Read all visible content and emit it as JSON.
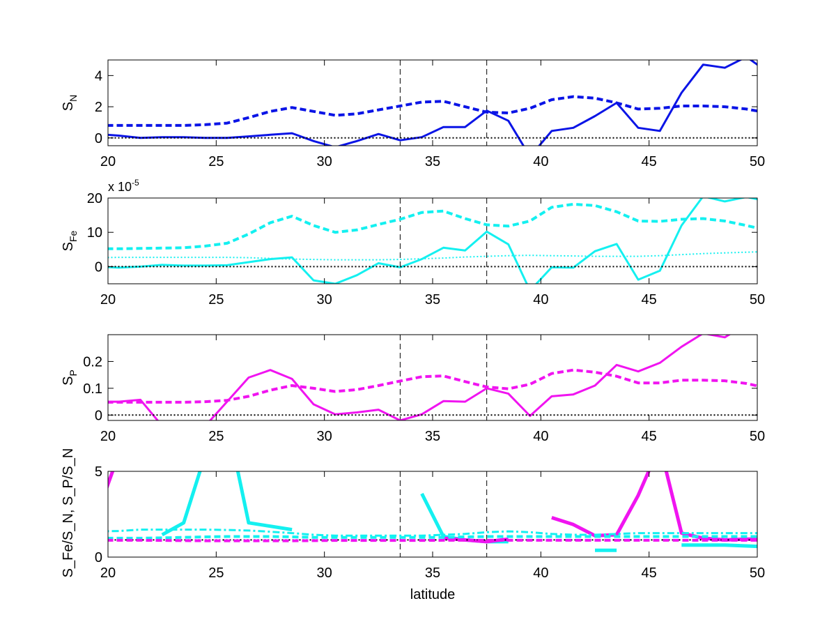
{
  "chart_data": [
    {
      "type": "line",
      "ylabel": {
        "base": "S",
        "sub": "N"
      },
      "xlim": [
        20,
        50
      ],
      "ylim": [
        -0.5,
        5
      ],
      "xticks": [
        20,
        25,
        30,
        35,
        40,
        45,
        50
      ],
      "yticks": [
        0,
        2,
        4
      ],
      "exponent": null,
      "vlines": [
        33.5,
        37.5
      ],
      "x": [
        19.5,
        20.5,
        21.5,
        22.5,
        23.5,
        24.5,
        25.5,
        26.5,
        27.5,
        28.5,
        29.5,
        30.5,
        31.5,
        32.5,
        33.5,
        34.5,
        35.5,
        36.5,
        37.5,
        38.5,
        39.5,
        40.5,
        41.5,
        42.5,
        43.5,
        44.5,
        45.5,
        46.5,
        47.5,
        48.5,
        49.5,
        50.5
      ],
      "series": [
        {
          "name": "S_N",
          "style": "solid",
          "color": "#0a14e6",
          "values": [
            0.25,
            0.15,
            0,
            0.05,
            0.05,
            0,
            0,
            0.1,
            0.2,
            0.3,
            -0.2,
            -0.6,
            -0.2,
            0.25,
            -0.15,
            0.05,
            0.7,
            0.7,
            1.75,
            1.1,
            -1.2,
            0.45,
            0.65,
            1.4,
            2.25,
            0.65,
            0.45,
            2.9,
            4.7,
            4.5,
            5.2,
            4.2
          ]
        },
        {
          "name": "S_N dashed",
          "style": "dashed",
          "color": "#0a14e6",
          "values": [
            0.8,
            0.8,
            0.8,
            0.8,
            0.8,
            0.85,
            0.95,
            1.3,
            1.7,
            1.95,
            1.7,
            1.45,
            1.55,
            1.8,
            2.05,
            2.3,
            2.35,
            2.0,
            1.65,
            1.6,
            1.9,
            2.45,
            2.65,
            2.55,
            2.25,
            1.85,
            1.9,
            2.05,
            2.05,
            2.0,
            1.85,
            1.6
          ]
        },
        {
          "name": "zero",
          "style": "dotted",
          "color": "#000000",
          "values": [
            0,
            0,
            0,
            0,
            0,
            0,
            0,
            0,
            0,
            0,
            0,
            0,
            0,
            0,
            0,
            0,
            0,
            0,
            0,
            0,
            0,
            0,
            0,
            0,
            0,
            0,
            0,
            0,
            0,
            0,
            0,
            0
          ]
        }
      ]
    },
    {
      "type": "line",
      "ylabel": {
        "base": "S",
        "sub": "Fe"
      },
      "xlim": [
        20,
        50
      ],
      "ylim": [
        -5,
        20
      ],
      "xticks": [
        20,
        25,
        30,
        35,
        40,
        45,
        50
      ],
      "yticks": [
        0,
        10,
        20
      ],
      "exponent": {
        "base": "x 10",
        "power": "-5"
      },
      "vlines": [
        33.5,
        37.5
      ],
      "x": [
        19.5,
        20.5,
        21.5,
        22.5,
        23.5,
        24.5,
        25.5,
        26.5,
        27.5,
        28.5,
        29.5,
        30.5,
        31.5,
        32.5,
        33.5,
        34.5,
        35.5,
        36.5,
        37.5,
        38.5,
        39.5,
        40.5,
        41.5,
        42.5,
        43.5,
        44.5,
        45.5,
        46.5,
        47.5,
        48.5,
        49.5,
        50.5
      ],
      "series": [
        {
          "name": "S_Fe",
          "style": "solid",
          "color": "#14f0f0",
          "values": [
            0,
            -0.3,
            0,
            0.5,
            0.3,
            0.3,
            0.4,
            1.3,
            2.2,
            2.7,
            -4,
            -5,
            -2.5,
            1,
            -0.2,
            2.2,
            5.5,
            4.7,
            10.2,
            6.5,
            -7,
            -0.2,
            -0.3,
            4.5,
            6.6,
            -3.8,
            -1.2,
            12,
            20.5,
            19,
            20.3,
            19
          ]
        },
        {
          "name": "S_Fe dashed",
          "style": "dashed",
          "color": "#14f0f0",
          "values": [
            5.2,
            5.2,
            5.3,
            5.4,
            5.5,
            6,
            6.8,
            9.5,
            12.8,
            14.7,
            12,
            10,
            10.7,
            12.3,
            13.8,
            15.8,
            16.2,
            14,
            12.2,
            11.8,
            13.3,
            17.3,
            18.2,
            17.8,
            16,
            13.3,
            13.2,
            13.8,
            14,
            13.3,
            12,
            10.5
          ]
        },
        {
          "name": "S_Fe dotted",
          "style": "dotted",
          "color": "#14f0f0",
          "values": [
            2.6,
            2.7,
            2.7,
            2.7,
            2.7,
            2.7,
            2.7,
            2.6,
            2.4,
            2.2,
            2.1,
            2.0,
            2.0,
            2.0,
            2.1,
            2.3,
            2.5,
            2.8,
            3.0,
            3.2,
            3.3,
            3.2,
            3.1,
            3.0,
            3.0,
            3.0,
            3.2,
            3.5,
            3.8,
            4.0,
            4.2,
            4.4
          ]
        },
        {
          "name": "zero",
          "style": "dotted",
          "color": "#000000",
          "values": [
            0,
            0,
            0,
            0,
            0,
            0,
            0,
            0,
            0,
            0,
            0,
            0,
            0,
            0,
            0,
            0,
            0,
            0,
            0,
            0,
            0,
            0,
            0,
            0,
            0,
            0,
            0,
            0,
            0,
            0,
            0,
            0
          ]
        }
      ]
    },
    {
      "type": "line",
      "ylabel": {
        "base": "S",
        "sub": "P"
      },
      "xlim": [
        20,
        50
      ],
      "ylim": [
        -0.02,
        0.3
      ],
      "xticks": [
        20,
        25,
        30,
        35,
        40,
        45,
        50
      ],
      "yticks": [
        0,
        0.1,
        0.2
      ],
      "exponent": null,
      "vlines": [
        33.5,
        37.5
      ],
      "x": [
        19.5,
        20.5,
        21.5,
        22.5,
        23.5,
        24.5,
        25.5,
        26.5,
        27.5,
        28.5,
        29.5,
        30.5,
        31.5,
        32.5,
        33.5,
        34.5,
        35.5,
        36.5,
        37.5,
        38.5,
        39.5,
        40.5,
        41.5,
        42.5,
        43.5,
        44.5,
        45.5,
        46.5,
        47.5,
        48.5,
        49.5,
        50.5
      ],
      "series": [
        {
          "name": "S_P",
          "style": "solid",
          "color": "#f014f0",
          "values": [
            0.05,
            0.05,
            0.057,
            -0.04,
            -0.1,
            -0.04,
            0.05,
            0.14,
            0.168,
            0.135,
            0.04,
            0.003,
            0.01,
            0.02,
            -0.02,
            0.003,
            0.052,
            0.05,
            0.1,
            0.08,
            -0.003,
            0.07,
            0.077,
            0.11,
            0.187,
            0.163,
            0.195,
            0.255,
            0.305,
            0.29,
            0.34,
            0.35
          ]
        },
        {
          "name": "S_P dashed",
          "style": "dashed",
          "color": "#f014f0",
          "values": [
            0.048,
            0.048,
            0.048,
            0.048,
            0.048,
            0.05,
            0.055,
            0.07,
            0.093,
            0.11,
            0.1,
            0.088,
            0.095,
            0.11,
            0.127,
            0.143,
            0.146,
            0.125,
            0.105,
            0.098,
            0.115,
            0.155,
            0.168,
            0.16,
            0.145,
            0.12,
            0.12,
            0.13,
            0.13,
            0.128,
            0.118,
            0.1
          ]
        },
        {
          "name": "zero",
          "style": "dotted",
          "color": "#000000",
          "values": [
            0,
            0,
            0,
            0,
            0,
            0,
            0,
            0,
            0,
            0,
            0,
            0,
            0,
            0,
            0,
            0,
            0,
            0,
            0,
            0,
            0,
            0,
            0,
            0,
            0,
            0,
            0,
            0,
            0,
            0,
            0,
            0
          ]
        }
      ]
    },
    {
      "type": "line",
      "ylabel": {
        "text": "S_Fe/S_N, S_P/S_N"
      },
      "xlabel": "latitude",
      "xlim": [
        20,
        50
      ],
      "ylim": [
        0,
        5
      ],
      "xticks": [
        20,
        25,
        30,
        35,
        40,
        45,
        50
      ],
      "yticks": [
        0,
        5
      ],
      "exponent": null,
      "vlines": [
        33.5,
        37.5
      ],
      "x": [
        19.5,
        20.5,
        21.5,
        22.5,
        23.5,
        24.5,
        25.5,
        26.5,
        27.5,
        28.5,
        29.5,
        30.5,
        31.5,
        32.5,
        33.5,
        34.5,
        35.5,
        36.5,
        37.5,
        38.5,
        39.5,
        40.5,
        41.5,
        42.5,
        43.5,
        44.5,
        45.5,
        46.5,
        47.5,
        48.5,
        49.5,
        50.5
      ],
      "series": [
        {
          "name": "S_Fe/S_N",
          "style": "thick",
          "color": "#14f0f0",
          "values": [
            null,
            null,
            null,
            1.3,
            2.0,
            6,
            8,
            2.0,
            1.8,
            1.6,
            null,
            null,
            null,
            null,
            null,
            3.7,
            1.2,
            1.0,
            0.9,
            0.9,
            null,
            null,
            null,
            0.4,
            0.4,
            null,
            null,
            0.7,
            0.7,
            0.7,
            0.65,
            0.6
          ]
        },
        {
          "name": "S_P/S_N",
          "style": "thick",
          "color": "#f014f0",
          "values": [
            2.5,
            6,
            null,
            null,
            null,
            null,
            null,
            null,
            null,
            null,
            null,
            null,
            null,
            null,
            null,
            null,
            1.1,
            1.0,
            0.9,
            1.05,
            null,
            2.3,
            1.9,
            1.25,
            1.3,
            3.6,
            6.5,
            1.4,
            1.1,
            1.0,
            1.05,
            1.05
          ]
        },
        {
          "name": "S_Fe/S_N dashdot",
          "style": "dashdot",
          "color": "#14f0f0",
          "values": [
            1.5,
            1.52,
            1.6,
            1.6,
            1.6,
            1.6,
            1.58,
            1.55,
            1.48,
            1.4,
            1.3,
            1.25,
            1.25,
            1.25,
            1.25,
            1.25,
            1.3,
            1.35,
            1.45,
            1.5,
            1.45,
            1.35,
            1.3,
            1.3,
            1.35,
            1.4,
            1.4,
            1.4,
            1.4,
            1.4,
            1.4,
            1.4
          ]
        },
        {
          "name": "S_Fe/S_N dashed",
          "style": "dashed",
          "color": "#14f0f0",
          "values": [
            1.1,
            1.1,
            1.1,
            1.12,
            1.15,
            1.18,
            1.2,
            1.2,
            1.2,
            1.18,
            1.15,
            1.15,
            1.15,
            1.15,
            1.15,
            1.15,
            1.15,
            1.18,
            1.2,
            1.2,
            1.2,
            1.2,
            1.2,
            1.2,
            1.2,
            1.2,
            1.2,
            1.2,
            1.2,
            1.2,
            1.2,
            1.2
          ]
        },
        {
          "name": "one",
          "style": "dotted",
          "color": "#000000",
          "values": [
            1,
            1,
            1,
            1,
            1,
            1,
            1,
            1,
            1,
            1,
            1,
            1,
            1,
            1,
            1,
            1,
            1,
            1,
            1,
            1,
            1,
            1,
            1,
            1,
            1,
            1,
            1,
            1,
            1,
            1,
            1,
            1
          ]
        },
        {
          "name": "S_P/S_N dashed",
          "style": "dashed",
          "color": "#f014f0",
          "values": [
            0.98,
            0.98,
            0.98,
            0.97,
            0.96,
            0.95,
            0.95,
            0.95,
            0.95,
            0.95,
            0.96,
            0.97,
            0.97,
            0.97,
            0.97,
            0.97,
            0.98,
            0.98,
            0.98,
            0.98,
            0.98,
            0.98,
            0.98,
            0.98,
            0.98,
            0.98,
            0.98,
            0.98,
            0.98,
            0.98,
            0.98,
            0.98
          ]
        }
      ]
    }
  ]
}
